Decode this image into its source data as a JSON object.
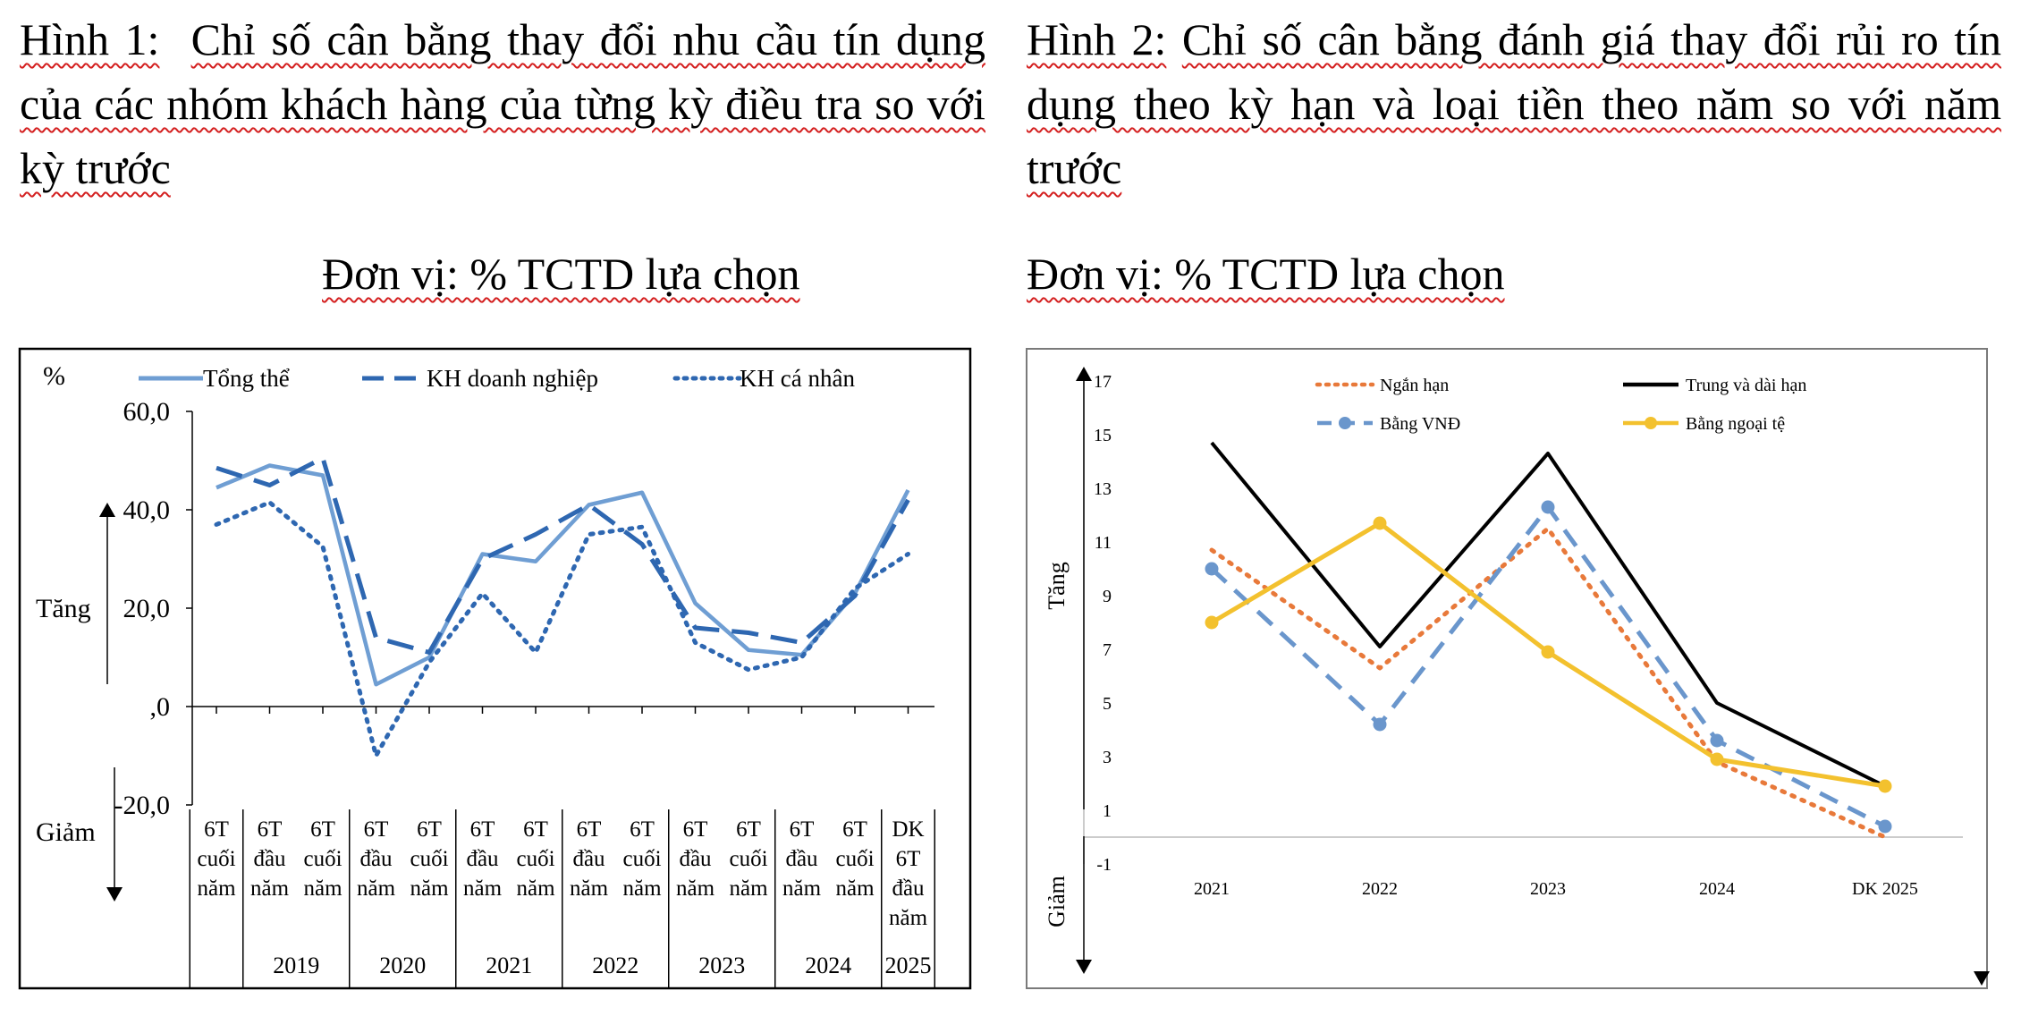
{
  "figure1": {
    "caption_prefix": "Hình 1:",
    "caption_text": "Chỉ số cân bằng thay đổi nhu cầu tín dụng của các nhóm khách hàng của từng kỳ điều tra so với kỳ trước",
    "unit": "Đơn vị: % TCTD lựa chọn"
  },
  "figure2": {
    "caption_prefix": "Hình 2:",
    "caption_text": "Chỉ số cân bằng đánh giá thay đổi rủi ro tín dụng theo kỳ hạn và loại tiền theo năm so với năm trước",
    "unit": "Đơn vị: % TCTD lựa chọn"
  },
  "chart_data": [
    {
      "type": "line",
      "ylabel": "%",
      "ylim": [
        -20,
        60
      ],
      "yticks": [
        "60,0",
        "40,0",
        "20,0",
        ",0",
        "-20,0"
      ],
      "ytick_values": [
        60,
        40,
        20,
        0,
        -20
      ],
      "up_label": "Tăng",
      "down_label": "Giảm",
      "categories": [
        [
          "6T",
          "cuối",
          "năm"
        ],
        [
          "6T",
          "đầu",
          "năm"
        ],
        [
          "6T",
          "cuối",
          "năm"
        ],
        [
          "6T",
          "đầu",
          "năm"
        ],
        [
          "6T",
          "cuối",
          "năm"
        ],
        [
          "6T",
          "đầu",
          "năm"
        ],
        [
          "6T",
          "cuối",
          "năm"
        ],
        [
          "6T",
          "đầu",
          "năm"
        ],
        [
          "6T",
          "cuối",
          "năm"
        ],
        [
          "6T",
          "đầu",
          "năm"
        ],
        [
          "6T",
          "cuối",
          "năm"
        ],
        [
          "6T",
          "đầu",
          "năm"
        ],
        [
          "6T",
          "cuối",
          "năm"
        ],
        [
          "DK",
          "6T",
          "đầu",
          "năm"
        ]
      ],
      "year_groups": [
        {
          "label": "",
          "span": 1
        },
        {
          "label": "2019",
          "span": 2
        },
        {
          "label": "2020",
          "span": 2
        },
        {
          "label": "2021",
          "span": 2
        },
        {
          "label": "2022",
          "span": 2
        },
        {
          "label": "2023",
          "span": 2
        },
        {
          "label": "2024",
          "span": 2
        },
        {
          "label": "2025",
          "span": 1
        }
      ],
      "legend_position": "top",
      "series": [
        {
          "name": "Tổng thể",
          "style": "solid",
          "color": "#6f9ed3",
          "values": [
            44.5,
            49,
            47,
            4.5,
            10,
            31,
            29.5,
            41,
            43.5,
            21,
            11.5,
            10.5,
            23,
            44
          ]
        },
        {
          "name": "KH doanh nghiệp",
          "style": "dashed",
          "color": "#2e67b1",
          "values": [
            48.5,
            45,
            50.5,
            14,
            11,
            30,
            35,
            41,
            33,
            16,
            15,
            13,
            22.5,
            42
          ]
        },
        {
          "name": "KH cá nhân",
          "style": "dotted",
          "color": "#2e67b1",
          "values": [
            37,
            41.5,
            32.5,
            -10,
            9,
            23,
            11,
            35,
            36.5,
            13,
            7.5,
            10,
            24,
            31
          ]
        }
      ]
    },
    {
      "type": "line",
      "ylim": [
        -1,
        17
      ],
      "yticks": [
        "17",
        "15",
        "13",
        "11",
        "9",
        "7",
        "5",
        "3",
        "1",
        "-1"
      ],
      "ytick_values": [
        17,
        15,
        13,
        11,
        9,
        7,
        5,
        3,
        1,
        -1
      ],
      "up_label": "Tăng",
      "down_label": "Giảm",
      "categories": [
        "2021",
        "2022",
        "2023",
        "2024",
        "DK 2025"
      ],
      "legend_position": "top",
      "series": [
        {
          "name": "Ngắn hạn",
          "style": "dotted",
          "color": "#e8793a",
          "values": [
            10.7,
            6.3,
            11.5,
            2.8,
            0
          ]
        },
        {
          "name": "Trung và dài hạn",
          "style": "solid",
          "color": "#000000",
          "values": [
            14.7,
            7.1,
            14.3,
            5,
            1.9
          ]
        },
        {
          "name": "Bằng VNĐ",
          "style": "dashed-marker",
          "color": "#6a96cc",
          "values": [
            10,
            4.2,
            12.3,
            3.6,
            0.4
          ]
        },
        {
          "name": "Bằng ngoại tệ",
          "style": "solid-marker",
          "color": "#f3c12e",
          "values": [
            8,
            11.7,
            6.9,
            2.9,
            1.9
          ]
        }
      ]
    }
  ]
}
